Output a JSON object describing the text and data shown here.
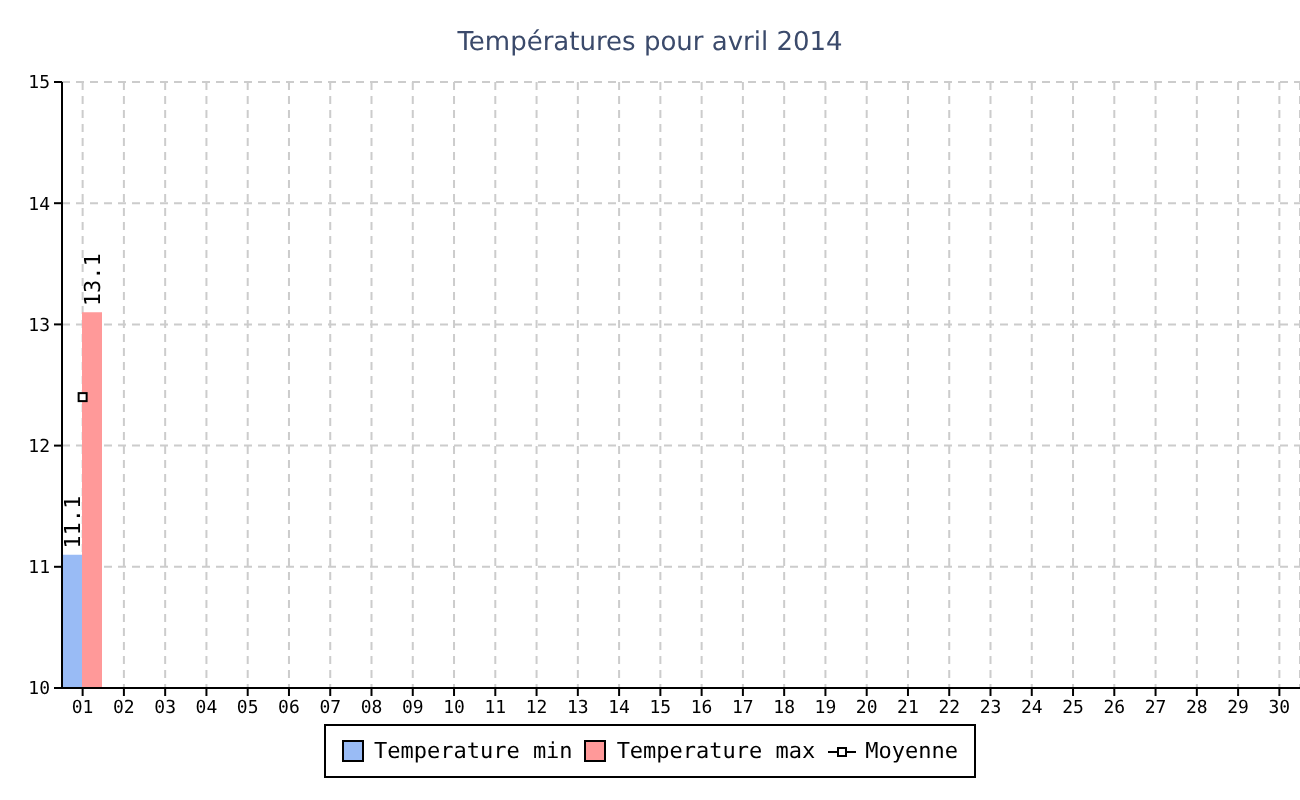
{
  "chart_data": {
    "type": "bar",
    "title": "Températures pour avril 2014",
    "categories": [
      "01",
      "02",
      "03",
      "04",
      "05",
      "06",
      "07",
      "08",
      "09",
      "10",
      "11",
      "12",
      "13",
      "14",
      "15",
      "16",
      "17",
      "18",
      "19",
      "20",
      "21",
      "22",
      "23",
      "24",
      "25",
      "26",
      "27",
      "28",
      "29",
      "30"
    ],
    "series": [
      {
        "name": "Temperature min",
        "color": "#99bbf5",
        "values": [
          11.1,
          null,
          null,
          null,
          null,
          null,
          null,
          null,
          null,
          null,
          null,
          null,
          null,
          null,
          null,
          null,
          null,
          null,
          null,
          null,
          null,
          null,
          null,
          null,
          null,
          null,
          null,
          null,
          null,
          null
        ],
        "value_labels": [
          "11.1",
          null,
          null,
          null,
          null,
          null,
          null,
          null,
          null,
          null,
          null,
          null,
          null,
          null,
          null,
          null,
          null,
          null,
          null,
          null,
          null,
          null,
          null,
          null,
          null,
          null,
          null,
          null,
          null,
          null
        ]
      },
      {
        "name": "Temperature max",
        "color": "#ff9999",
        "values": [
          13.1,
          null,
          null,
          null,
          null,
          null,
          null,
          null,
          null,
          null,
          null,
          null,
          null,
          null,
          null,
          null,
          null,
          null,
          null,
          null,
          null,
          null,
          null,
          null,
          null,
          null,
          null,
          null,
          null,
          null
        ],
        "value_labels": [
          "13.1",
          null,
          null,
          null,
          null,
          null,
          null,
          null,
          null,
          null,
          null,
          null,
          null,
          null,
          null,
          null,
          null,
          null,
          null,
          null,
          null,
          null,
          null,
          null,
          null,
          null,
          null,
          null,
          null,
          null
        ]
      },
      {
        "name": "Moyenne",
        "type": "line",
        "color": "#000000",
        "marker": "square",
        "values": [
          12.4,
          null,
          null,
          null,
          null,
          null,
          null,
          null,
          null,
          null,
          null,
          null,
          null,
          null,
          null,
          null,
          null,
          null,
          null,
          null,
          null,
          null,
          null,
          null,
          null,
          null,
          null,
          null,
          null,
          null
        ]
      }
    ],
    "ylim": [
      10,
      15
    ],
    "yticks": [
      10,
      11,
      12,
      13,
      14,
      15
    ],
    "grid": true,
    "legend": "bottom"
  }
}
